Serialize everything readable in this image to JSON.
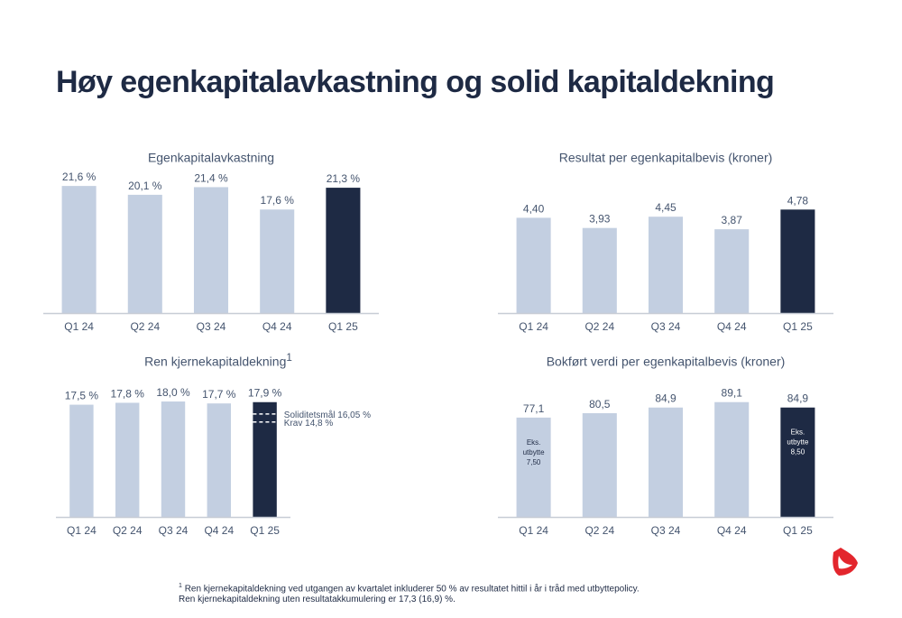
{
  "page": {
    "title": "Høy egenkapitalavkastning og solid kapitaldekning",
    "footnote_mark": "1",
    "footnote": "Ren kjernekapitaldekning ved utgangen av kvartalet inkluderer 50 % av resultatet hittil i år i tråd med utbyttepolicy. Ren kjernekapitaldekning uten resultatakkumulering er 17,3 (16,9) %."
  },
  "colors": {
    "bar": "#c3cfe1",
    "highlight": "#1e2a44",
    "axis": "#c8cdd6",
    "text": "#44546e",
    "logo": "#e3262d"
  },
  "icons": {
    "logo": "brand-logo"
  },
  "chart_data": [
    {
      "type": "bar",
      "title": "Egenkapitalavkastning",
      "title_sup": "",
      "categories": [
        "Q1 24",
        "Q2 24",
        "Q3 24",
        "Q4 24",
        "Q1 25"
      ],
      "values": [
        21.6,
        20.1,
        21.4,
        17.6,
        21.3
      ],
      "labels": [
        "21,6 %",
        "20,1 %",
        "21,4 %",
        "17,6 %",
        "21,3 %"
      ],
      "highlight_index": 4,
      "ylim": [
        0,
        23
      ],
      "reference_lines": [],
      "inner_labels": []
    },
    {
      "type": "bar",
      "title": "Resultat per egenkapitalbevis (kroner)",
      "title_sup": "",
      "categories": [
        "Q1 24",
        "Q2 24",
        "Q3 24",
        "Q4 24",
        "Q1 25"
      ],
      "values": [
        4.4,
        3.93,
        4.45,
        3.87,
        4.78
      ],
      "labels": [
        "4,40",
        "3,93",
        "4,45",
        "3,87",
        "4,78"
      ],
      "highlight_index": 4,
      "ylim": [
        0,
        6.25
      ],
      "reference_lines": [],
      "inner_labels": []
    },
    {
      "type": "bar",
      "title": "Ren kjernekapitaldekning",
      "title_sup": "1",
      "categories": [
        "Q1 24",
        "Q2 24",
        "Q3 24",
        "Q4 24",
        "Q1 25"
      ],
      "values": [
        17.5,
        17.8,
        18.0,
        17.7,
        17.9
      ],
      "labels": [
        "17,5 %",
        "17,8 %",
        "18,0 %",
        "17,7 %",
        "17,9 %"
      ],
      "highlight_index": 4,
      "ylim": [
        0,
        21.1
      ],
      "reference_lines": [
        {
          "value": 16.05,
          "label": "Soliditetsmål 16,05 %"
        },
        {
          "value": 14.8,
          "label": "Krav 14,8 %"
        }
      ],
      "inner_labels": []
    },
    {
      "type": "bar",
      "title": "Bokført verdi per egenkapitalbevis (kroner)",
      "title_sup": "",
      "categories": [
        "Q1 24",
        "Q2 24",
        "Q3 24",
        "Q4 24",
        "Q1 25"
      ],
      "values": [
        77.1,
        80.5,
        84.9,
        89.1,
        84.9
      ],
      "labels": [
        "77,1",
        "80,5",
        "84,9",
        "89,1",
        "84,9"
      ],
      "highlight_index": 4,
      "ylim": [
        0,
        105
      ],
      "reference_lines": [],
      "inner_labels": [
        {
          "index": 0,
          "lines": [
            "Eks.",
            "utbytte",
            "7,50"
          ]
        },
        {
          "index": 4,
          "lines": [
            "Eks.",
            "utbytte",
            "8,50"
          ]
        }
      ]
    }
  ]
}
